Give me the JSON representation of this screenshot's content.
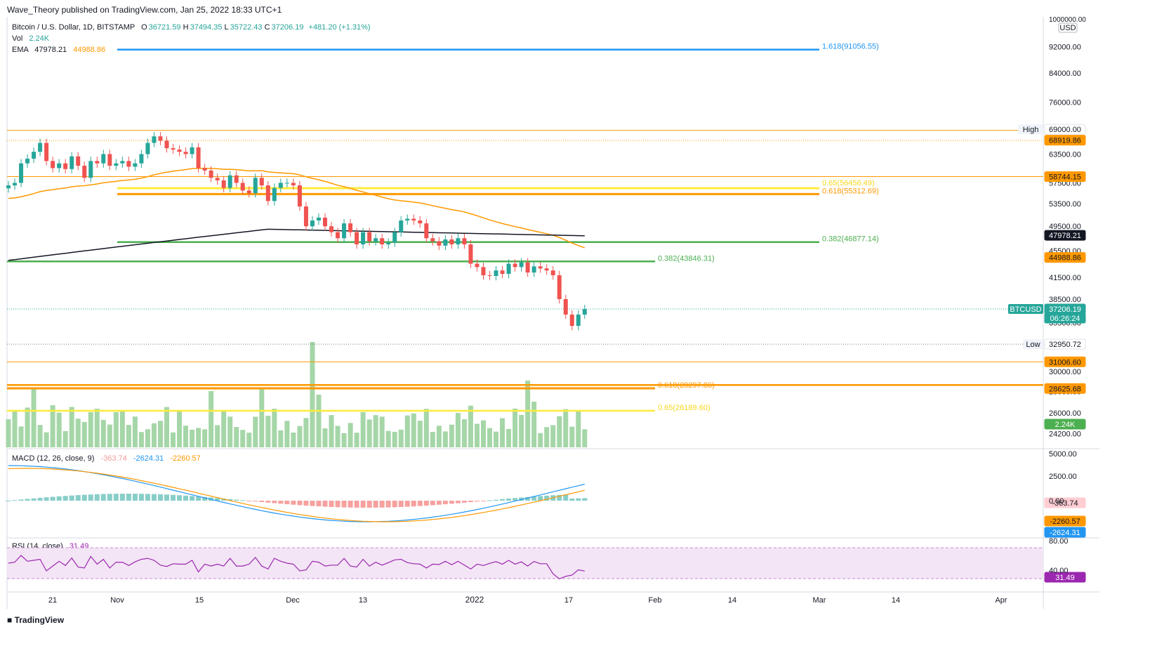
{
  "publish_line": "Wave_Theory published on TradingView.com, Jan 25, 2022 18:33 UTC+1",
  "legend": {
    "symbol": "Bitcoin / U.S. Dollar, 1D, BITSTAMP",
    "ohlc": [
      {
        "k": "O",
        "v": "36721.59"
      },
      {
        "k": "H",
        "v": "37494.35"
      },
      {
        "k": "L",
        "v": "35722.43"
      },
      {
        "k": "C",
        "v": "37206.19"
      }
    ],
    "change": "+481.20 (+1.31%)",
    "vol_label": "Vol",
    "vol_value": "2.24K",
    "ema_label": "EMA",
    "ema1": "47978.21",
    "ema2": "44988.86",
    "macd_label": "MACD (12, 26, close, 9)",
    "macd_values": [
      "-363.74",
      "-2624.31",
      "-2260.57"
    ],
    "rsi_label": "RSI (14, close)",
    "rsi_value": "31.49"
  },
  "colors": {
    "up": "#26a69a",
    "down": "#ef5350",
    "orange": "#ff9800",
    "green_line": "#4caf50",
    "yellow": "#ffeb3b",
    "blue": "#2196f3",
    "black": "#131722",
    "volume": "#a5d6a7",
    "rsi_fill": "#f3e5f5",
    "rsi_line": "#9c27b0"
  },
  "price_axis": {
    "currency_top": "1000000.00",
    "currency": "USD",
    "ticks": [
      "92000.00",
      "84000.00",
      "76000.00",
      "69000.00",
      "63500.00",
      "57500.00",
      "53500.00",
      "49500.00",
      "45500.00",
      "41500.00",
      "38500.00",
      "35500.00",
      "33000.00",
      "30000.00",
      "28000.00",
      "26000.00",
      "24200.00"
    ]
  },
  "macd_axis": [
    "5000.00",
    "2500.00",
    "0.00"
  ],
  "rsi_axis": [
    "80.00",
    "40.00"
  ],
  "time_axis": [
    "21",
    "Nov",
    "15",
    "Dec",
    "13",
    "2022",
    "17",
    "Feb",
    "14",
    "Mar",
    "14",
    "Apr"
  ],
  "price_tags": [
    {
      "label": "High",
      "value": "69000.00",
      "color": "#ffffff",
      "text": "#131722"
    },
    {
      "label": "",
      "value": "68919.86",
      "color": "#ff9800",
      "text": "#131722"
    },
    {
      "label": "",
      "value": "58744.15",
      "color": "#ff9800",
      "text": "#131722"
    },
    {
      "label": "",
      "value": "47978.21",
      "color": "#131722",
      "text": "#ffffff"
    },
    {
      "label": "",
      "value": "44988.86",
      "color": "#ff9800",
      "text": "#131722"
    },
    {
      "label": "BTCUSD",
      "value": "37206.19",
      "color": "#26a69a",
      "text": "#ffffff"
    },
    {
      "label": "",
      "value": "06:26:24",
      "color": "#26a69a",
      "text": "#ffffff"
    },
    {
      "label": "Low",
      "value": "32950.72",
      "color": "#ffffff",
      "text": "#131722"
    },
    {
      "label": "",
      "value": "31006.60",
      "color": "#ff9800",
      "text": "#131722"
    },
    {
      "label": "",
      "value": "28625.68",
      "color": "#ff9800",
      "text": "#131722"
    },
    {
      "label": "",
      "value": "2.24K",
      "color": "#4caf50",
      "text": "#ffffff"
    },
    {
      "label": "",
      "value": "-363.74",
      "color": "#ffcdd2",
      "text": "#131722"
    },
    {
      "label": "",
      "value": "-2260.57",
      "color": "#ff9800",
      "text": "#131722"
    },
    {
      "label": "",
      "value": "-2624.31",
      "color": "#2196f3",
      "text": "#ffffff"
    },
    {
      "label": "",
      "value": "31.49",
      "color": "#9c27b0",
      "text": "#ffffff"
    }
  ],
  "fib_labels": [
    {
      "text": "1.618(91056.55)",
      "color": "#2196f3"
    },
    {
      "text": "0.65(56456.49)",
      "color": "#f9d71c"
    },
    {
      "text": "0.618(55312.69)",
      "color": "#ff9800"
    },
    {
      "text": "0.382(46877.14)",
      "color": "#4caf50"
    },
    {
      "text": "0.382(43846.31)",
      "color": "#4caf50"
    },
    {
      "text": "0.618(28297.86)",
      "color": "#ff9800"
    },
    {
      "text": "0.65(26189.60)",
      "color": "#f9d71c"
    }
  ],
  "logo": "TradingView",
  "chart_data": {
    "type": "candlestick",
    "symbol": "BTCUSD",
    "timeframe": "1D",
    "x_range": [
      "2021-10-14",
      "2022-01-25"
    ],
    "close_series_approx": [
      57000,
      57500,
      61500,
      62500,
      64000,
      66000,
      62000,
      60500,
      61500,
      60300,
      63000,
      61000,
      58500,
      62000,
      61500,
      63500,
      61000,
      61500,
      62000,
      60800,
      61500,
      63500,
      66000,
      67500,
      66500,
      64800,
      64500,
      64000,
      63500,
      65000,
      60500,
      60000,
      58500,
      58000,
      56500,
      59000,
      57500,
      56000,
      55500,
      58500,
      57000,
      54000,
      56500,
      57500,
      57500,
      57000,
      53000,
      49500,
      50500,
      51000,
      49500,
      48500,
      47500,
      50000,
      48500,
      46500,
      48500,
      47000,
      47500,
      46500,
      46800,
      48500,
      50500,
      50800,
      50500,
      50000,
      47500,
      47000,
      46300,
      47300,
      46500,
      47500,
      46500,
      43500,
      43000,
      41800,
      41700,
      42500,
      42000,
      43500,
      43000,
      43700,
      42200,
      43100,
      42800,
      42500,
      41800,
      38500,
      36500,
      35100,
      36500,
      37206.19
    ],
    "levels": [
      {
        "name": "1.618",
        "value": 91056.55
      },
      {
        "name": "0.65",
        "value": 56456.49
      },
      {
        "name": "0.618",
        "value": 55312.69
      },
      {
        "name": "0.382",
        "value": 46877.14
      },
      {
        "name": "0.382",
        "value": 43846.31
      },
      {
        "name": "0.618",
        "value": 28297.86
      },
      {
        "name": "0.65",
        "value": 26189.6
      },
      {
        "name": "High",
        "value": 69000.0
      },
      {
        "name": "Low",
        "value": 32950.72
      }
    ],
    "horizontal_lines": [
      68919.86,
      58744.15,
      31006.6,
      28625.68
    ],
    "ema": [
      47978.21,
      44988.86
    ],
    "y_scale": "log"
  }
}
